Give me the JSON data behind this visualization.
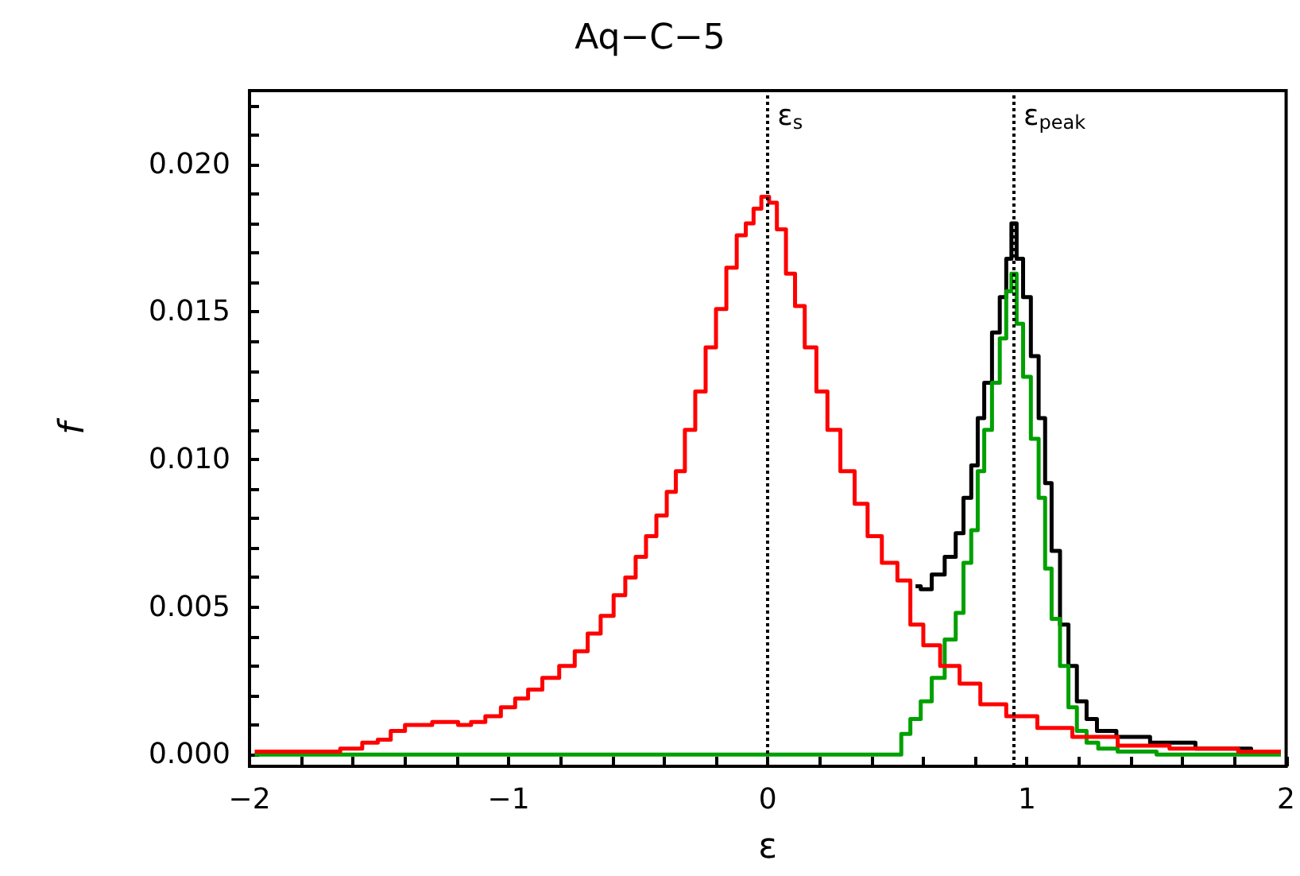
{
  "chart_data": {
    "type": "step",
    "title": "Aq−C−5",
    "xlabel": "ε",
    "ylabel": "f",
    "xlim": [
      -2,
      2
    ],
    "ylim": [
      -0.0004,
      0.0225
    ],
    "xticks": [
      {
        "value": -2,
        "label": "−2"
      },
      {
        "value": -1.8,
        "label": null
      },
      {
        "value": -1.6,
        "label": null
      },
      {
        "value": -1.4,
        "label": null
      },
      {
        "value": -1.2,
        "label": null
      },
      {
        "value": -1,
        "label": "−1"
      },
      {
        "value": -0.8,
        "label": null
      },
      {
        "value": -0.6,
        "label": null
      },
      {
        "value": -0.4,
        "label": null
      },
      {
        "value": -0.2,
        "label": null
      },
      0,
      {
        "value": 0.2,
        "label": null
      },
      {
        "value": 0.4,
        "label": null
      },
      {
        "value": 0.6,
        "label": null
      },
      {
        "value": 0.8,
        "label": null
      },
      1,
      {
        "value": 1.2,
        "label": null
      },
      {
        "value": 1.4,
        "label": null
      },
      {
        "value": 1.6,
        "label": null
      },
      {
        "value": 1.8,
        "label": null
      },
      2
    ],
    "yticks": [
      {
        "value": 0,
        "label": "0.000"
      },
      {
        "value": 0.001,
        "label": null
      },
      {
        "value": 0.002,
        "label": null
      },
      {
        "value": 0.003,
        "label": null
      },
      {
        "value": 0.004,
        "label": null
      },
      {
        "value": 0.005,
        "label": "0.005"
      },
      {
        "value": 0.006,
        "label": null
      },
      {
        "value": 0.007,
        "label": null
      },
      {
        "value": 0.008,
        "label": null
      },
      {
        "value": 0.009,
        "label": null
      },
      {
        "value": 0.01,
        "label": "0.010"
      },
      {
        "value": 0.011,
        "label": null
      },
      {
        "value": 0.012,
        "label": null
      },
      {
        "value": 0.013,
        "label": null
      },
      {
        "value": 0.014,
        "label": null
      },
      {
        "value": 0.015,
        "label": "0.015"
      },
      {
        "value": 0.016,
        "label": null
      },
      {
        "value": 0.017,
        "label": null
      },
      {
        "value": 0.018,
        "label": null
      },
      {
        "value": 0.019,
        "label": null
      },
      {
        "value": 0.02,
        "label": "0.020"
      },
      {
        "value": 0.021,
        "label": null
      },
      {
        "value": 0.022,
        "label": null
      }
    ],
    "series": [
      {
        "color": "#000000",
        "x": [
          0.57,
          0.61,
          0.655,
          0.71,
          0.74,
          0.77,
          0.8,
          0.82,
          0.85,
          0.88,
          0.91,
          0.93,
          0.95,
          0.97,
          1.0,
          1.03,
          1.06,
          1.08,
          1.11,
          1.145,
          1.175,
          1.21,
          1.25,
          1.29,
          1.4,
          1.55,
          1.75,
          1.98
        ],
        "values": [
          0.0057,
          0.0056,
          0.0061,
          0.0067,
          0.0075,
          0.0087,
          0.0098,
          0.0114,
          0.0126,
          0.0143,
          0.0155,
          0.0168,
          0.018,
          0.0168,
          0.0155,
          0.0135,
          0.0114,
          0.0092,
          0.0069,
          0.0044,
          0.003,
          0.0018,
          0.0012,
          0.0008,
          0.0006,
          0.0004,
          0.0002,
          0.0001
        ]
      },
      {
        "color": "#00a000",
        "x": [
          -1.98,
          0.5,
          0.53,
          0.57,
          0.61,
          0.655,
          0.71,
          0.74,
          0.77,
          0.8,
          0.82,
          0.85,
          0.88,
          0.91,
          0.93,
          0.95,
          0.97,
          1.0,
          1.03,
          1.06,
          1.08,
          1.11,
          1.145,
          1.175,
          1.21,
          1.25,
          1.3,
          1.4,
          1.6,
          1.98
        ],
        "values": [
          0,
          0,
          0.0007,
          0.0012,
          0.0018,
          0.0026,
          0.0039,
          0.0048,
          0.0065,
          0.0076,
          0.0096,
          0.011,
          0.0126,
          0.0141,
          0.0157,
          0.0163,
          0.0146,
          0.0128,
          0.0107,
          0.0087,
          0.0063,
          0.0046,
          0.003,
          0.0016,
          0.0008,
          0.0004,
          0.0002,
          0.0001,
          0,
          0
        ]
      },
      {
        "color": "#ff0000",
        "x": [
          -1.98,
          -1.85,
          -1.7,
          -1.6,
          -1.53,
          -1.48,
          -1.43,
          -1.37,
          -1.32,
          -1.27,
          -1.22,
          -1.17,
          -1.12,
          -1.06,
          -1.0,
          -0.95,
          -0.9,
          -0.84,
          -0.77,
          -0.72,
          -0.67,
          -0.62,
          -0.57,
          -0.53,
          -0.49,
          -0.45,
          -0.41,
          -0.37,
          -0.34,
          -0.3,
          -0.26,
          -0.22,
          -0.18,
          -0.14,
          -0.1,
          -0.07,
          -0.04,
          -0.01,
          0.02,
          0.05,
          0.09,
          0.12,
          0.165,
          0.21,
          0.25,
          0.31,
          0.36,
          0.41,
          0.47,
          0.53,
          0.57,
          0.63,
          0.7,
          0.78,
          0.86,
          0.98,
          1.1,
          1.25,
          1.45,
          1.65,
          1.98
        ],
        "values": [
          0.0001,
          0.0001,
          0.0001,
          0.0002,
          0.0004,
          0.0005,
          0.0008,
          0.001,
          0.001,
          0.0011,
          0.0011,
          0.001,
          0.0011,
          0.0013,
          0.0016,
          0.0019,
          0.0022,
          0.0026,
          0.003,
          0.0035,
          0.0041,
          0.0047,
          0.0054,
          0.006,
          0.0067,
          0.0074,
          0.0081,
          0.0089,
          0.0096,
          0.011,
          0.0123,
          0.0138,
          0.0151,
          0.0165,
          0.0176,
          0.018,
          0.0185,
          0.0189,
          0.0187,
          0.0178,
          0.0163,
          0.0152,
          0.0138,
          0.0123,
          0.011,
          0.0096,
          0.0085,
          0.0074,
          0.0065,
          0.0059,
          0.0044,
          0.0037,
          0.003,
          0.0024,
          0.0017,
          0.0013,
          0.0009,
          0.0006,
          0.0003,
          0.0002,
          0.0001
        ]
      }
    ],
    "ref_lines": [
      {
        "axis": "x",
        "value": 0,
        "label": "ε$_{s}$",
        "color": "#000000",
        "line_style": "dotted"
      },
      {
        "axis": "x",
        "value": 0.95,
        "label": "ε$_{peak}$",
        "color": "#000000",
        "line_style": "dotted"
      }
    ]
  }
}
